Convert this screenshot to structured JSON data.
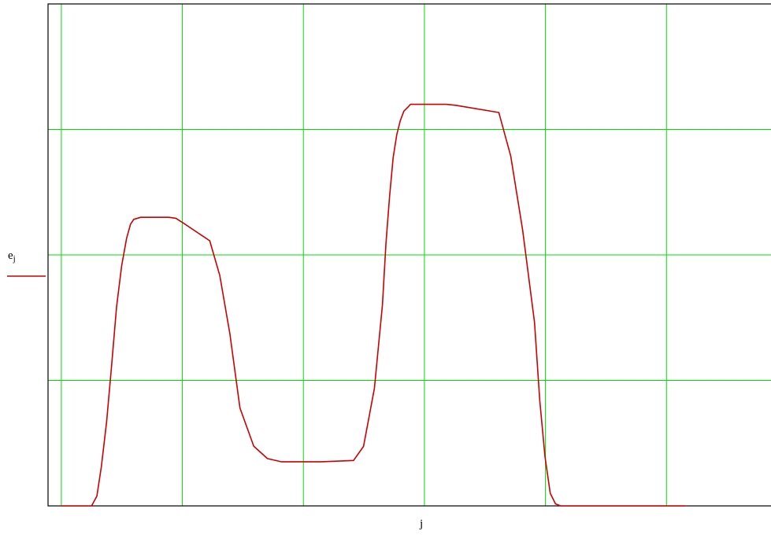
{
  "chart_data": {
    "type": "line",
    "title": "",
    "xlabel": "j",
    "ylabel": "e",
    "ylabel_subscript": "j",
    "xlim": [
      0,
      1
    ],
    "ylim": [
      0,
      1
    ],
    "x_ticks": [
      0.0184,
      0.1858,
      0.3532,
      0.5206,
      0.688,
      0.8554,
      1.0
    ],
    "y_ticks": [
      0.0,
      0.25,
      0.5,
      0.75,
      1.0
    ],
    "grid": true,
    "grid_color": "#00dd00",
    "series": [
      {
        "color": "#cc0000",
        "x": [
          0.0184,
          0.0602,
          0.0675,
          0.0738,
          0.081,
          0.088,
          0.0948,
          0.1019,
          0.1087,
          0.114,
          0.1185,
          0.1282,
          0.1379,
          0.1477,
          0.1574,
          0.1671,
          0.1768,
          0.1866,
          0.2236,
          0.2376,
          0.2515,
          0.2655,
          0.2845,
          0.3035,
          0.3225,
          0.3415,
          0.3535,
          0.3655,
          0.3776,
          0.4225,
          0.4364,
          0.4514,
          0.4625,
          0.4674,
          0.4724,
          0.4773,
          0.4823,
          0.4873,
          0.4922,
          0.4986,
          0.5013,
          0.5069,
          0.5095,
          0.5233,
          0.5371,
          0.5509,
          0.5646,
          0.6235,
          0.64,
          0.6564,
          0.6729,
          0.6802,
          0.6875,
          0.6947,
          0.702,
          0.7093,
          0.7165,
          0.7238,
          0.7322,
          0.7363,
          0.7404,
          0.7445,
          0.8818
        ],
        "y": [
          0.0,
          0.0,
          0.0195,
          0.078,
          0.1678,
          0.2811,
          0.3963,
          0.4785,
          0.5334,
          0.561,
          0.5709,
          0.575,
          0.575,
          0.575,
          0.575,
          0.575,
          0.573,
          0.564,
          0.5282,
          0.459,
          0.3428,
          0.195,
          0.119,
          0.0942,
          0.088,
          0.088,
          0.088,
          0.088,
          0.088,
          0.0904,
          0.1185,
          0.234,
          0.4002,
          0.5232,
          0.617,
          0.6935,
          0.7395,
          0.7676,
          0.7864,
          0.7956,
          0.8,
          0.8,
          0.8,
          0.8,
          0.8,
          0.8,
          0.798,
          0.7837,
          0.6971,
          0.55,
          0.3659,
          0.2095,
          0.097,
          0.025,
          0.0039,
          0.0,
          0.0,
          0.0,
          0.0,
          0.0,
          0.0,
          0.0,
          0.0
        ]
      }
    ]
  }
}
